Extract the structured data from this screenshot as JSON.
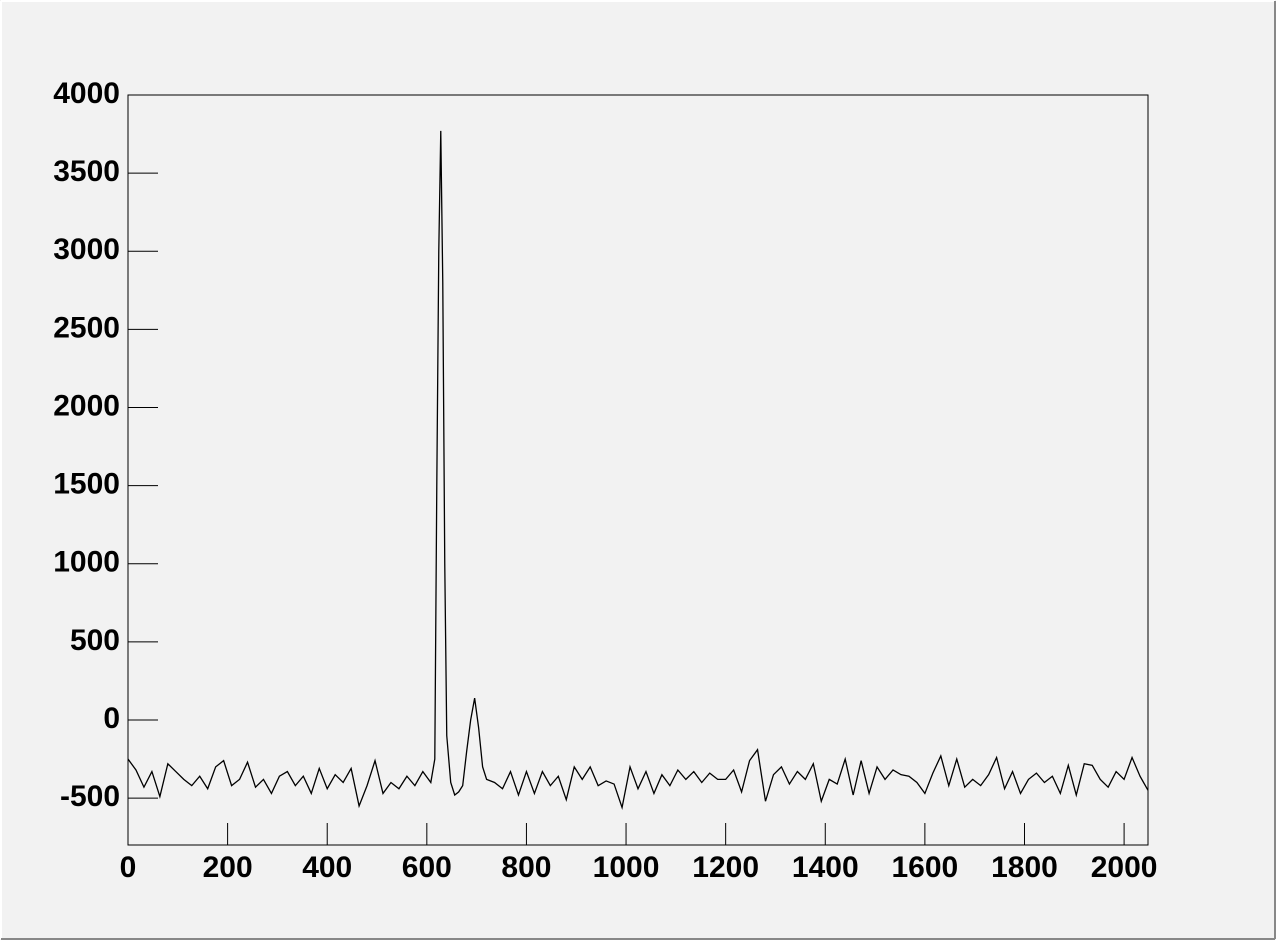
{
  "chart_data": {
    "type": "line",
    "color": "#000000",
    "x": [
      0,
      16,
      32,
      48,
      64,
      80,
      96,
      112,
      128,
      144,
      160,
      176,
      192,
      208,
      224,
      240,
      256,
      272,
      288,
      304,
      320,
      336,
      352,
      368,
      384,
      400,
      416,
      432,
      448,
      464,
      480,
      496,
      512,
      528,
      544,
      560,
      576,
      592,
      608,
      616,
      620,
      624,
      628,
      632,
      636,
      640,
      648,
      656,
      664,
      672,
      680,
      688,
      696,
      704,
      712,
      720,
      736,
      752,
      768,
      784,
      800,
      816,
      832,
      848,
      864,
      880,
      896,
      912,
      928,
      944,
      960,
      976,
      992,
      1008,
      1024,
      1040,
      1056,
      1072,
      1088,
      1104,
      1120,
      1136,
      1152,
      1168,
      1184,
      1200,
      1216,
      1232,
      1248,
      1264,
      1280,
      1296,
      1312,
      1328,
      1344,
      1360,
      1376,
      1392,
      1408,
      1424,
      1440,
      1456,
      1472,
      1488,
      1504,
      1520,
      1536,
      1552,
      1568,
      1584,
      1600,
      1616,
      1632,
      1648,
      1664,
      1680,
      1696,
      1712,
      1728,
      1744,
      1760,
      1776,
      1792,
      1808,
      1824,
      1840,
      1856,
      1872,
      1888,
      1904,
      1920,
      1936,
      1952,
      1968,
      1984,
      2000,
      2016,
      2032,
      2048
    ],
    "values": [
      -250,
      -320,
      -430,
      -330,
      -490,
      -280,
      -330,
      -380,
      -420,
      -360,
      -440,
      -300,
      -260,
      -420,
      -380,
      -270,
      -430,
      -380,
      -470,
      -360,
      -330,
      -420,
      -360,
      -470,
      -310,
      -440,
      -350,
      -400,
      -310,
      -550,
      -420,
      -260,
      -470,
      -400,
      -440,
      -360,
      -420,
      -330,
      -400,
      -250,
      1500,
      3000,
      3770,
      2800,
      1000,
      -100,
      -400,
      -480,
      -460,
      -420,
      -200,
      0,
      140,
      -50,
      -300,
      -380,
      -400,
      -440,
      -330,
      -480,
      -330,
      -470,
      -330,
      -420,
      -360,
      -510,
      -300,
      -380,
      -300,
      -420,
      -390,
      -410,
      -560,
      -300,
      -440,
      -330,
      -470,
      -350,
      -420,
      -320,
      -380,
      -330,
      -400,
      -340,
      -380,
      -380,
      -320,
      -460,
      -260,
      -190,
      -520,
      -350,
      -300,
      -410,
      -330,
      -380,
      -280,
      -520,
      -380,
      -410,
      -250,
      -480,
      -260,
      -470,
      -300,
      -380,
      -320,
      -350,
      -360,
      -400,
      -470,
      -340,
      -230,
      -420,
      -250,
      -430,
      -380,
      -420,
      -350,
      -240,
      -440,
      -330,
      -470,
      -380,
      -340,
      -400,
      -360,
      -470,
      -290,
      -480,
      -280,
      -290,
      -380,
      -430,
      -330,
      -380,
      -240,
      -360,
      -450
    ],
    "xlim": [
      0,
      2048
    ],
    "xticks": [
      0,
      200,
      400,
      600,
      800,
      1000,
      1200,
      1400,
      1600,
      1800,
      2000
    ],
    "ylim": [
      -800,
      4000
    ],
    "yticks": [
      -500,
      0,
      500,
      1000,
      1500,
      2000,
      2500,
      3000,
      3500,
      4000
    ]
  }
}
